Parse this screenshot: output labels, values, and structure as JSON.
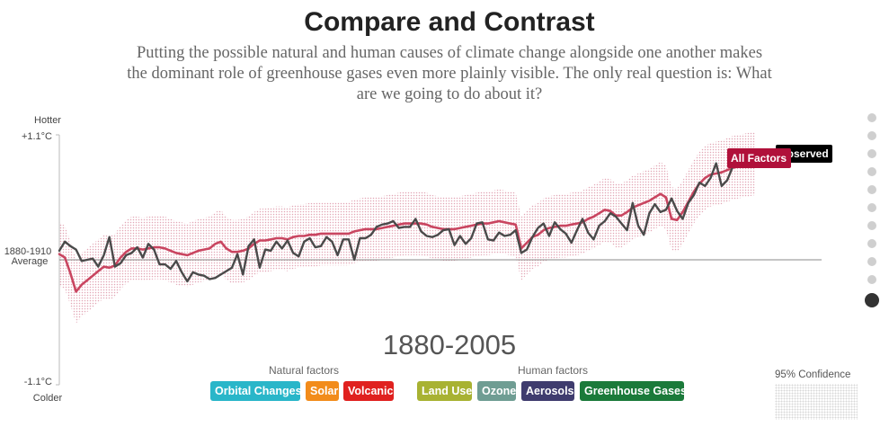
{
  "title": "Compare and Contrast",
  "subtitle": "Putting the possible natural and human causes of climate change alongside one another makes the dominant role of greenhouse gases even more plainly visible. The only real question is: What are we going to do about it?",
  "chart_data": {
    "type": "line",
    "x_start": 1880,
    "x_end": 2005,
    "range_label": "1880-2005",
    "ylim": [
      -1.1,
      1.1
    ],
    "y_axis": {
      "top_label": "Hotter",
      "top_value": "+1.1°C",
      "baseline_label_line1": "1880-1910",
      "baseline_label_line2": "Average",
      "bottom_value": "-1.1°C",
      "bottom_label": "Colder"
    },
    "series": [
      {
        "name": "Observed",
        "color": "#4a4a4a",
        "values": [
          0.08,
          0.16,
          0.12,
          0.09,
          -0.01,
          0.0,
          0.01,
          -0.06,
          0.04,
          0.2,
          -0.06,
          -0.03,
          0.04,
          0.06,
          0.11,
          0.02,
          0.14,
          0.09,
          -0.04,
          -0.04,
          -0.08,
          -0.01,
          -0.11,
          -0.19,
          -0.11,
          -0.13,
          -0.14,
          -0.17,
          -0.16,
          -0.13,
          -0.1,
          -0.07,
          0.05,
          -0.13,
          0.12,
          0.18,
          -0.07,
          0.09,
          0.08,
          0.16,
          0.1,
          0.17,
          0.06,
          0.03,
          0.16,
          0.19,
          0.11,
          0.12,
          0.2,
          0.16,
          0.04,
          0.18,
          0.18,
          0.0,
          0.19,
          0.19,
          0.22,
          0.29,
          0.31,
          0.32,
          0.34,
          0.28,
          0.29,
          0.29,
          0.36,
          0.25,
          0.21,
          0.2,
          0.22,
          0.26,
          0.27,
          0.13,
          0.21,
          0.14,
          0.19,
          0.32,
          0.33,
          0.18,
          0.17,
          0.24,
          0.21,
          0.22,
          0.26,
          0.06,
          0.09,
          0.2,
          0.28,
          0.32,
          0.21,
          0.33,
          0.27,
          0.23,
          0.15,
          0.26,
          0.36,
          0.24,
          0.18,
          0.3,
          0.34,
          0.41,
          0.38,
          0.32,
          0.26,
          0.5,
          0.3,
          0.22,
          0.41,
          0.49,
          0.42,
          0.44,
          0.54,
          0.43,
          0.36,
          0.5,
          0.57,
          0.68,
          0.65,
          0.72,
          0.85,
          0.65,
          0.7,
          0.82,
          0.86,
          0.88,
          0.82,
          0.85
        ]
      },
      {
        "name": "All Factors",
        "color": "#c94560",
        "values": [
          0.05,
          0.02,
          -0.12,
          -0.28,
          -0.22,
          -0.18,
          -0.14,
          -0.1,
          -0.06,
          -0.07,
          -0.05,
          0.02,
          0.07,
          0.1,
          0.1,
          0.09,
          0.1,
          0.11,
          0.11,
          0.1,
          0.08,
          0.06,
          0.05,
          0.04,
          0.06,
          0.08,
          0.09,
          0.1,
          0.14,
          0.16,
          0.1,
          0.07,
          0.07,
          0.08,
          0.1,
          0.14,
          0.17,
          0.17,
          0.18,
          0.19,
          0.19,
          0.18,
          0.2,
          0.21,
          0.21,
          0.22,
          0.22,
          0.23,
          0.23,
          0.23,
          0.23,
          0.23,
          0.23,
          0.25,
          0.26,
          0.27,
          0.27,
          0.27,
          0.28,
          0.29,
          0.3,
          0.31,
          0.32,
          0.32,
          0.32,
          0.32,
          0.31,
          0.29,
          0.28,
          0.27,
          0.27,
          0.27,
          0.28,
          0.29,
          0.3,
          0.31,
          0.32,
          0.32,
          0.33,
          0.34,
          0.33,
          0.32,
          0.31,
          0.1,
          0.15,
          0.2,
          0.22,
          0.26,
          0.28,
          0.29,
          0.3,
          0.3,
          0.31,
          0.32,
          0.33,
          0.36,
          0.38,
          0.41,
          0.44,
          0.43,
          0.39,
          0.39,
          0.42,
          0.46,
          0.48,
          0.5,
          0.52,
          0.55,
          0.58,
          0.55,
          0.36,
          0.35,
          0.42,
          0.51,
          0.6,
          0.67,
          0.72,
          0.75,
          0.76,
          0.77,
          0.79,
          0.81,
          0.82,
          0.83,
          0.84,
          0.85
        ]
      }
    ],
    "confidence_band": {
      "label": "95% Confidence",
      "half_width": 0.28
    },
    "end_labels": {
      "observed": "Observed",
      "all_factors": "All Factors"
    }
  },
  "legend": {
    "natural_title": "Natural factors",
    "human_title": "Human factors",
    "natural": [
      {
        "label": "Orbital Changes",
        "color": "#29b6c9"
      },
      {
        "label": "Solar",
        "color": "#f28c1b"
      },
      {
        "label": "Volcanic",
        "color": "#e0211f"
      }
    ],
    "human": [
      {
        "label": "Land Use",
        "color": "#a8b232"
      },
      {
        "label": "Ozone",
        "color": "#6f9d93"
      },
      {
        "label": "Aerosols",
        "color": "#3f3c6e"
      },
      {
        "label": "Greenhouse Gases",
        "color": "#1b7a3a"
      }
    ]
  },
  "nav": {
    "dot_count": 11,
    "active_index": 10
  }
}
